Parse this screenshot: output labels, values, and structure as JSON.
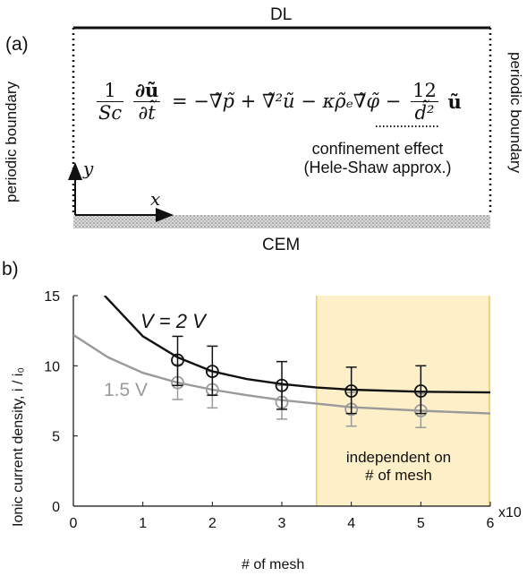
{
  "panel_a": {
    "label": "(a)",
    "top_label": "DL",
    "bottom_label": "CEM",
    "left_boundary": "periodic boundary",
    "right_boundary": "periodic boundary",
    "axis_y": "y",
    "axis_x": "x",
    "equation": {
      "lhs_num": "1",
      "lhs_den": "Sc",
      "d_num": "∂ũ",
      "d_den": "∂t̃",
      "rhs": "= −∇̃p̃ + ∇̃²ũ − κρ̃ₑ∇̃φ̃ −",
      "last_num": "12",
      "last_den": "d̃²",
      "last_var": "ũ"
    },
    "note_line1": "confinement effect",
    "note_line2": "(Hele-Shaw approx.)"
  },
  "panel_b": {
    "label": "b)",
    "shaded_text_line1": "independent on",
    "shaded_text_line2": "# of mesh",
    "colors": {
      "dark": "#111111",
      "gray": "#9a9a9a",
      "shade": "#fdf0c8",
      "shade_edge": "#f0c860"
    }
  },
  "chart_data": {
    "type": "scatter",
    "xlabel": "# of mesh",
    "ylabel": "Ionic current density, i / i₀",
    "x_multiplier": "x10",
    "xlim": [
      0,
      6
    ],
    "ylim": [
      0,
      15
    ],
    "x_ticks": [
      "0",
      "1",
      "2",
      "3",
      "4",
      "5",
      "6"
    ],
    "y_ticks": [
      "0",
      "5",
      "10",
      "15"
    ],
    "shaded_region_x": [
      3.5,
      6
    ],
    "series": [
      {
        "name": "V = 2 V",
        "x": [
          1.5,
          2,
          3,
          4,
          5
        ],
        "y": [
          10.4,
          9.6,
          8.6,
          8.2,
          8.2
        ],
        "err_low": [
          8.6,
          7.9,
          6.9,
          6.6,
          6.6
        ],
        "err_high": [
          12.1,
          11.4,
          10.3,
          9.9,
          10.0
        ],
        "fit": [
          [
            0.45,
            15.0
          ],
          [
            1.0,
            12.1
          ],
          [
            1.5,
            10.6
          ],
          [
            2.0,
            9.6
          ],
          [
            2.5,
            9.05
          ],
          [
            3.0,
            8.7
          ],
          [
            3.5,
            8.45
          ],
          [
            4.0,
            8.3
          ],
          [
            5.0,
            8.15
          ],
          [
            6.0,
            8.1
          ]
        ]
      },
      {
        "name": "1.5 V",
        "x": [
          1.5,
          2,
          3,
          4,
          5
        ],
        "y": [
          8.8,
          8.3,
          7.4,
          6.9,
          6.8
        ],
        "err_low": [
          7.6,
          7.0,
          6.2,
          5.7,
          5.6
        ],
        "err_high": [
          10.1,
          9.6,
          8.6,
          8.1,
          8.0
        ],
        "fit": [
          [
            0.0,
            12.2
          ],
          [
            0.5,
            10.6
          ],
          [
            1.0,
            9.5
          ],
          [
            1.5,
            8.8
          ],
          [
            2.0,
            8.3
          ],
          [
            2.5,
            7.9
          ],
          [
            3.0,
            7.55
          ],
          [
            3.5,
            7.3
          ],
          [
            4.0,
            7.05
          ],
          [
            5.0,
            6.8
          ],
          [
            6.0,
            6.6
          ]
        ]
      }
    ]
  }
}
